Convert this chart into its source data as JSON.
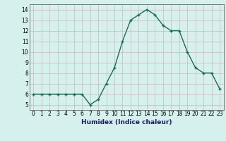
{
  "x": [
    0,
    1,
    2,
    3,
    4,
    5,
    6,
    7,
    8,
    9,
    10,
    11,
    12,
    13,
    14,
    15,
    16,
    17,
    18,
    19,
    20,
    21,
    22,
    23
  ],
  "y": [
    6.0,
    6.0,
    6.0,
    6.0,
    6.0,
    6.0,
    6.0,
    5.0,
    5.5,
    7.0,
    8.5,
    11.0,
    13.0,
    13.5,
    14.0,
    13.5,
    12.5,
    12.0,
    12.0,
    10.0,
    8.5,
    8.0,
    8.0,
    6.5
  ],
  "line_color": "#1a6b5a",
  "marker": "+",
  "xlabel": "Humidex (Indice chaleur)",
  "xlim": [
    -0.5,
    23.5
  ],
  "ylim": [
    4.5,
    14.5
  ],
  "yticks": [
    5,
    6,
    7,
    8,
    9,
    10,
    11,
    12,
    13,
    14
  ],
  "xticks": [
    0,
    1,
    2,
    3,
    4,
    5,
    6,
    7,
    8,
    9,
    10,
    11,
    12,
    13,
    14,
    15,
    16,
    17,
    18,
    19,
    20,
    21,
    22,
    23
  ],
  "xtick_labels": [
    "0",
    "1",
    "2",
    "3",
    "4",
    "5",
    "6",
    "7",
    "8",
    "9",
    "10",
    "11",
    "12",
    "13",
    "14",
    "15",
    "16",
    "17",
    "18",
    "19",
    "20",
    "21",
    "22",
    "23"
  ],
  "bg_color": "#d6f0ee",
  "grid_color_v": "#c8b8b8",
  "grid_color_h": "#c8b8b8",
  "linewidth": 1.0,
  "markersize": 3.5,
  "tick_fontsize": 5.5,
  "xlabel_fontsize": 6.5,
  "xlabel_color": "#1a1a6a"
}
